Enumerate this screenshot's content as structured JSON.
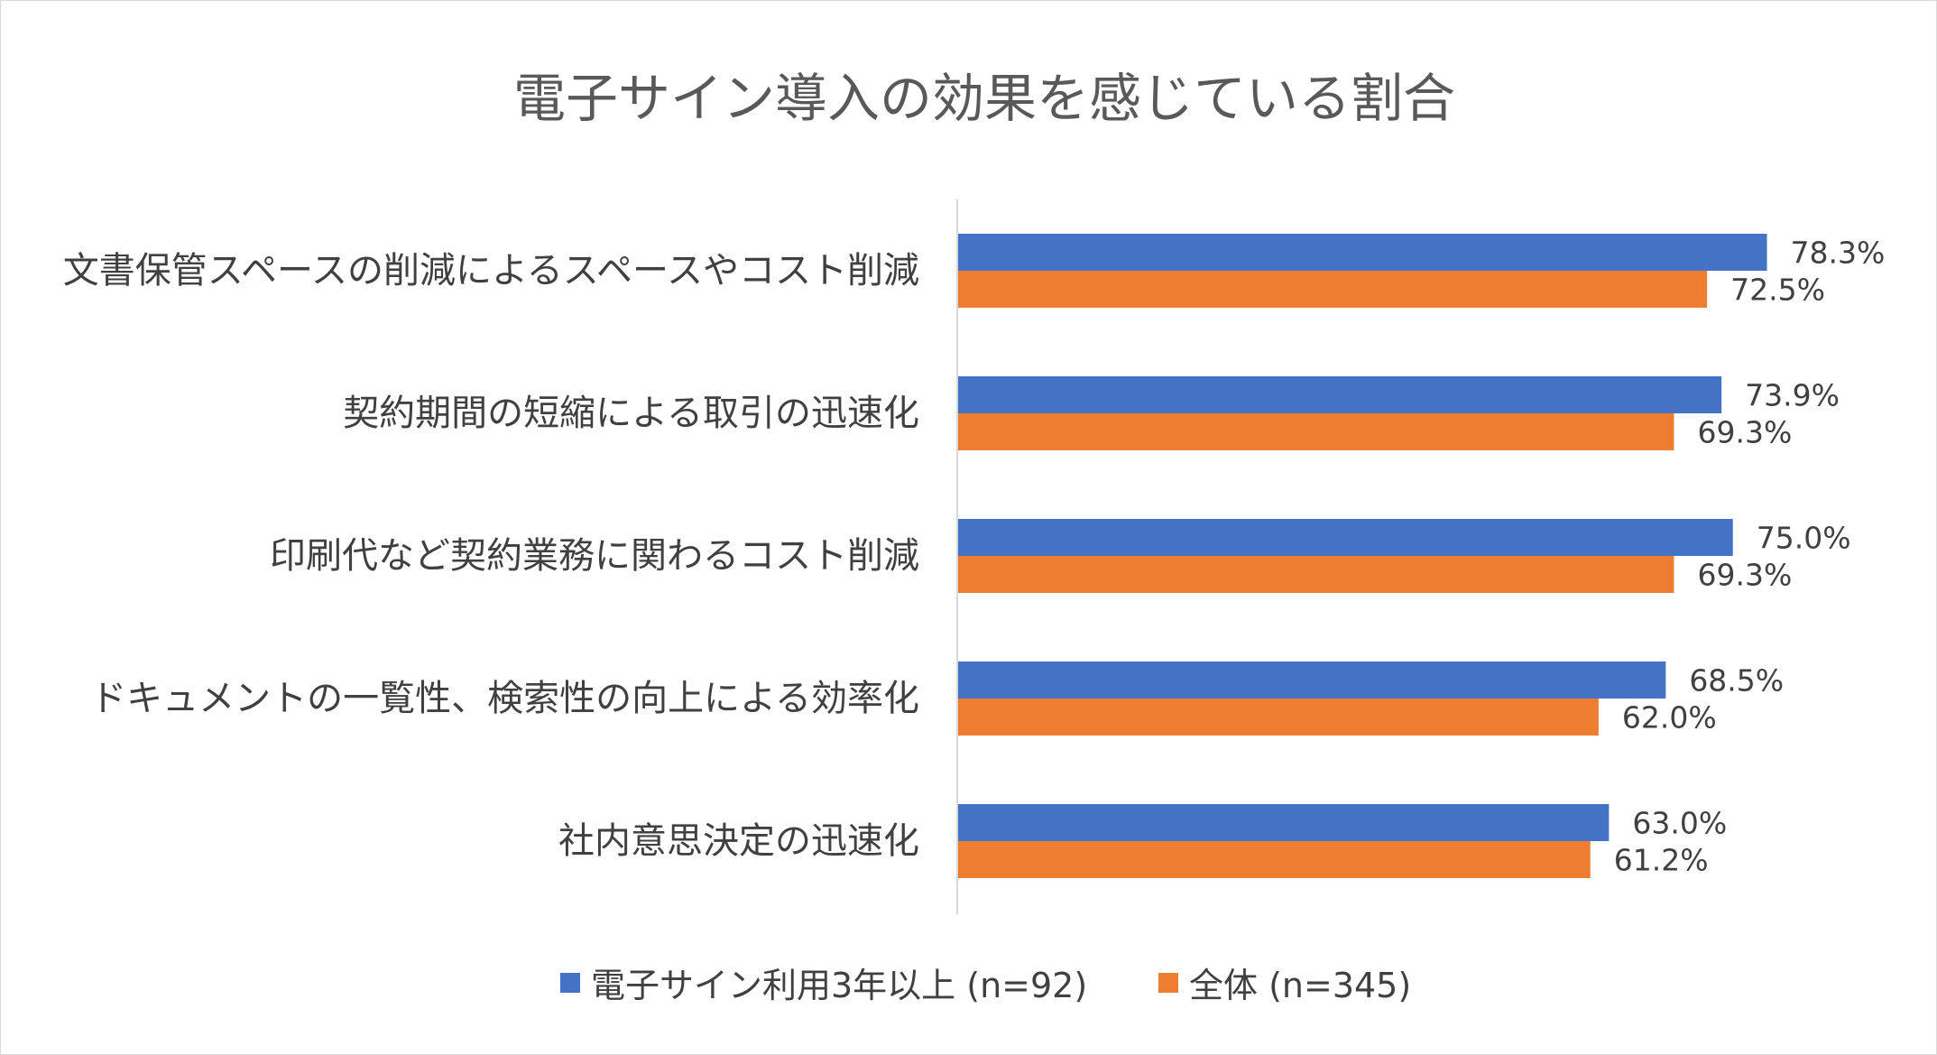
{
  "chart_data": {
    "type": "bar",
    "orientation": "horizontal",
    "title": "電子サイン導入の効果を感じている割合",
    "categories": [
      "文書保管スペースの削減によるスペースやコスト削減",
      "契約期間の短縮による取引の迅速化",
      "印刷代など契約業務に関わるコスト削減",
      "ドキュメントの一覧性、検索性の向上による効率化",
      "社内意思決定の迅速化"
    ],
    "series": [
      {
        "name": "電子サイン利用3年以上 (n=92)",
        "color": "#4472C4",
        "values": [
          78.3,
          73.9,
          75.0,
          68.5,
          63.0
        ],
        "labels": [
          "78.3%",
          "73.9%",
          "75.0%",
          "68.5%",
          "63.0%"
        ]
      },
      {
        "name": "全体 (n=345)",
        "color": "#ED7D31",
        "values": [
          72.5,
          69.3,
          69.3,
          62.0,
          61.2
        ],
        "labels": [
          "72.5%",
          "69.3%",
          "69.3%",
          "62.0%",
          "61.2%"
        ]
      }
    ],
    "xlim": [
      0,
      100
    ],
    "grid": false,
    "legend_position": "bottom"
  }
}
